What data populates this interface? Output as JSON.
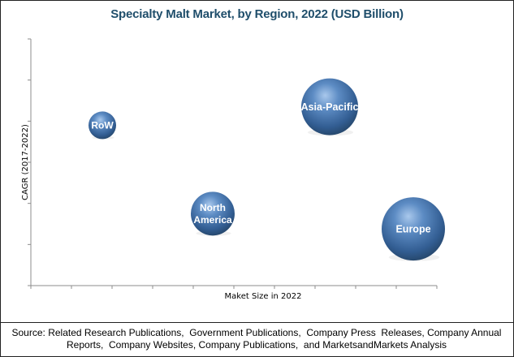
{
  "chart_data": {
    "type": "scatter",
    "subtype": "bubble",
    "title": "Specialty Malt Market, by Region, 2022 (USD Billion)",
    "xlabel": "Maket Size in 2022",
    "ylabel": "CAGR (2017-2022)",
    "xlim": [
      0,
      10
    ],
    "ylim": [
      0,
      6
    ],
    "x_ticks": 10,
    "y_ticks": 6,
    "grid": false,
    "legend": "none",
    "series": [
      {
        "name": "RoW",
        "label_lines": [
          "RoW"
        ],
        "x": 1.76,
        "y": 3.9,
        "size": 17
      },
      {
        "name": "North America",
        "label_lines": [
          "North",
          "America"
        ],
        "x": 4.48,
        "y": 1.75,
        "size": 27
      },
      {
        "name": "Asia-Pacific",
        "label_lines": [
          "Asia-Pacific"
        ],
        "x": 7.36,
        "y": 4.35,
        "size": 35
      },
      {
        "name": "Europe",
        "label_lines": [
          "Europe"
        ],
        "x": 9.42,
        "y": 1.38,
        "size": 39
      }
    ],
    "bubble_color": "#3f6fa8"
  },
  "source": {
    "line1": "Source: Related Research Publications,  Government Publications,  Company Press  Releases, Company Annual",
    "line2": "Reports,  Company Websites, Company Publications,  and MarketsandMarkets Analysis"
  }
}
